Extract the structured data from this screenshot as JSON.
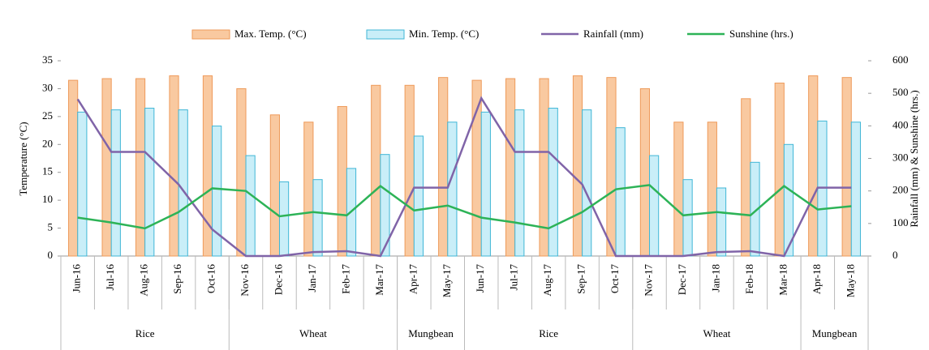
{
  "chart_data": {
    "type": "bar-line",
    "categories": [
      "Jun-16",
      "Jul-16",
      "Aug-16",
      "Sep-16",
      "Oct-16",
      "Nov-16",
      "Dec-16",
      "Jan-17",
      "Feb-17",
      "Mar-17",
      "Apr-17",
      "May-17",
      "Jun-17",
      "Jul-17",
      "Aug-17",
      "Sep-17",
      "Oct-17",
      "Nov-17",
      "Dec-17",
      "Jan-18",
      "Feb-18",
      "Mar-18",
      "Apr-18",
      "May-18"
    ],
    "category_groups": [
      "Rice",
      "Rice",
      "Rice",
      "Rice",
      "Rice",
      "Wheat",
      "Wheat",
      "Wheat",
      "Wheat",
      "Wheat",
      "Mungbean",
      "Mungbean",
      "Rice",
      "Rice",
      "Rice",
      "Rice",
      "Rice",
      "Wheat",
      "Wheat",
      "Wheat",
      "Wheat",
      "Wheat",
      "Mungbean",
      "Mungbean"
    ],
    "series": [
      {
        "name": "Max. Temp. (°C)",
        "type": "bar",
        "color": "#f9c9a0",
        "edge": "#ee9a5a",
        "values": [
          31.5,
          31.8,
          31.8,
          32.3,
          32.3,
          30,
          25.3,
          24,
          26.8,
          30.6,
          30.6,
          32,
          31.5,
          31.8,
          31.8,
          32.3,
          32,
          30,
          24,
          24,
          28.2,
          31,
          32.3,
          32
        ]
      },
      {
        "name": "Min. Temp. (°C)",
        "type": "bar",
        "color": "#c9eef8",
        "edge": "#3fb6d6",
        "values": [
          25.8,
          26.2,
          26.5,
          26.2,
          23.3,
          18,
          13.3,
          13.7,
          15.7,
          18.2,
          21.5,
          24,
          25.8,
          26.2,
          26.5,
          26.2,
          23,
          18,
          13.7,
          12.2,
          16.8,
          20,
          24.2,
          24
        ]
      },
      {
        "name": "Rainfall (mm)",
        "type": "line",
        "axis": "y2",
        "color": "#8064a8",
        "values": [
          482,
          320,
          320,
          220,
          82,
          0,
          0,
          12,
          15,
          0,
          210,
          210,
          485,
          320,
          320,
          220,
          0,
          0,
          0,
          12,
          15,
          0,
          210,
          210
        ]
      },
      {
        "name": "Sunshine (hrs.)",
        "type": "line",
        "axis": "y2",
        "color": "#2db357",
        "values": [
          118,
          103,
          85,
          135,
          208,
          200,
          122,
          135,
          125,
          215,
          140,
          155,
          118,
          103,
          85,
          135,
          205,
          218,
          125,
          135,
          125,
          215,
          143,
          153
        ]
      }
    ],
    "ylabel": "Temperature (°C)",
    "y2label": "Rainfall (mm) & Sunshine (hrs.)",
    "ylim": [
      0,
      35
    ],
    "yticks": [
      0,
      5,
      10,
      15,
      20,
      25,
      30,
      35
    ],
    "y2lim": [
      0,
      600
    ],
    "y2ticks": [
      0,
      100,
      200,
      300,
      400,
      500,
      600
    ],
    "legend": "top"
  }
}
